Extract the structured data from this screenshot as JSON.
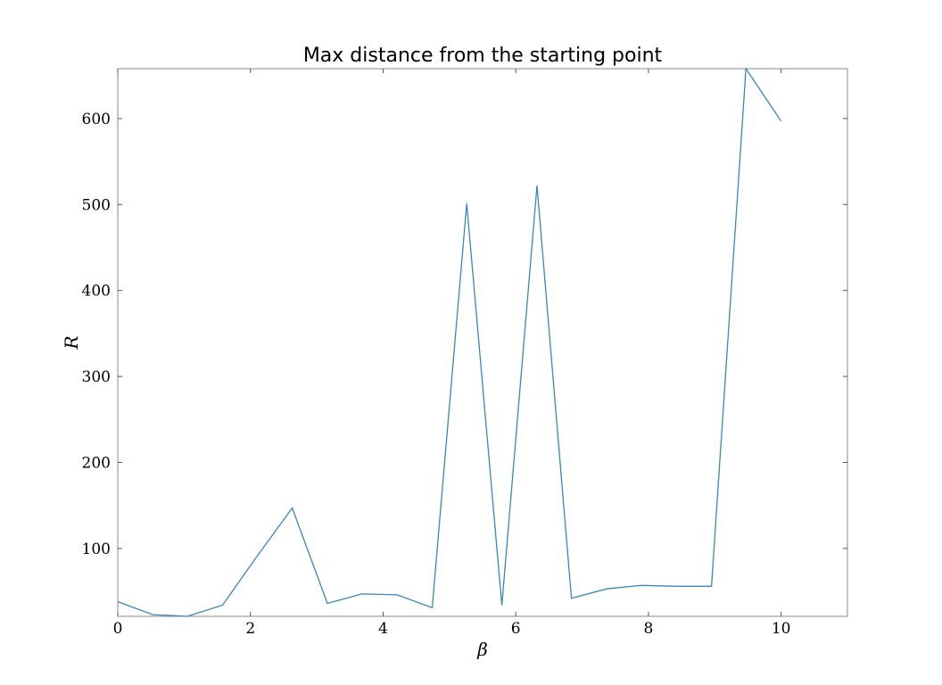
{
  "chart_data": {
    "type": "line",
    "title": "Max distance from the starting point",
    "xlabel": "β",
    "ylabel": "R",
    "xlim": [
      0,
      11
    ],
    "ylim": [
      21,
      658
    ],
    "xticks": [
      0,
      2,
      4,
      6,
      8,
      10
    ],
    "yticks": [
      100,
      200,
      300,
      400,
      500,
      600
    ],
    "grid": false,
    "series": [
      {
        "color": "#3a87b8",
        "x": [
          0.0,
          0.53,
          1.05,
          1.58,
          2.11,
          2.63,
          3.16,
          3.68,
          4.21,
          4.74,
          5.26,
          5.79,
          6.32,
          6.84,
          7.37,
          7.89,
          8.42,
          8.95,
          9.47,
          10.0
        ],
        "y": [
          38,
          23,
          21,
          34,
          92,
          147,
          36,
          47,
          46,
          31,
          501,
          34,
          522,
          42,
          53,
          57,
          56,
          56,
          658,
          597
        ]
      }
    ]
  }
}
